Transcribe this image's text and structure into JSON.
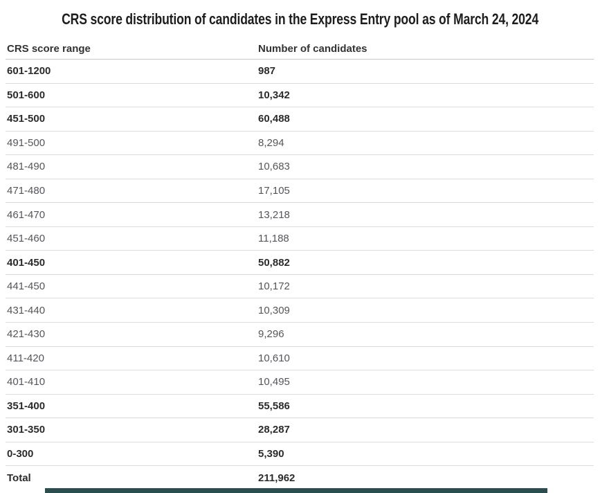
{
  "title": "CRS score distribution of candidates in the Express Entry pool as of March 24, 2024",
  "table": {
    "columns": [
      "CRS score range",
      "Number of candidates"
    ],
    "rows": [
      {
        "range": "601-1200",
        "count": "987",
        "bold": true
      },
      {
        "range": "501-600",
        "count": "10,342",
        "bold": true
      },
      {
        "range": "451-500",
        "count": "60,488",
        "bold": true
      },
      {
        "range": "491-500",
        "count": "8,294",
        "bold": false
      },
      {
        "range": "481-490",
        "count": "10,683",
        "bold": false
      },
      {
        "range": "471-480",
        "count": "17,105",
        "bold": false
      },
      {
        "range": "461-470",
        "count": "13,218",
        "bold": false
      },
      {
        "range": "451-460",
        "count": "11,188",
        "bold": false
      },
      {
        "range": "401-450",
        "count": "50,882",
        "bold": true
      },
      {
        "range": "441-450",
        "count": "10,172",
        "bold": false
      },
      {
        "range": "431-440",
        "count": "10,309",
        "bold": false
      },
      {
        "range": "421-430",
        "count": "9,296",
        "bold": false
      },
      {
        "range": "411-420",
        "count": "10,610",
        "bold": false
      },
      {
        "range": "401-410",
        "count": "10,495",
        "bold": false
      },
      {
        "range": "351-400",
        "count": "55,586",
        "bold": true
      },
      {
        "range": "301-350",
        "count": "28,287",
        "bold": true
      },
      {
        "range": "0-300",
        "count": "5,390",
        "bold": true
      },
      {
        "range": "Total",
        "count": "211,962",
        "bold": true
      }
    ]
  },
  "chart_data": {
    "type": "table",
    "title": "CRS score distribution of candidates in the Express Entry pool as of March 24, 2024",
    "columns": [
      "CRS score range",
      "Number of candidates"
    ],
    "categories": [
      "601-1200",
      "501-600",
      "451-500",
      "491-500",
      "481-490",
      "471-480",
      "461-470",
      "451-460",
      "401-450",
      "441-450",
      "431-440",
      "421-430",
      "411-420",
      "401-410",
      "351-400",
      "301-350",
      "0-300",
      "Total"
    ],
    "values": [
      987,
      10342,
      60488,
      8294,
      10683,
      17105,
      13218,
      11188,
      50882,
      10172,
      10309,
      9296,
      10610,
      10495,
      55586,
      28287,
      5390,
      211962
    ],
    "emphasized_rows": [
      "601-1200",
      "501-600",
      "451-500",
      "401-450",
      "351-400",
      "301-350",
      "0-300",
      "Total"
    ],
    "group_rows": {
      "451-500": [
        "491-500",
        "481-490",
        "471-480",
        "461-470",
        "451-460"
      ],
      "401-450": [
        "441-450",
        "431-440",
        "421-430",
        "411-420",
        "401-410"
      ]
    },
    "total": 211962
  },
  "colors": {
    "background": "#ffffff",
    "title_text": "#1d1d1d",
    "header_text": "#333333",
    "bold_row_text": "#2b2b2b",
    "normal_row_text": "#54555b",
    "header_border": "#c8c8c8",
    "row_border": "#dcdcdc",
    "bottom_bar": "#2a4d4f"
  }
}
